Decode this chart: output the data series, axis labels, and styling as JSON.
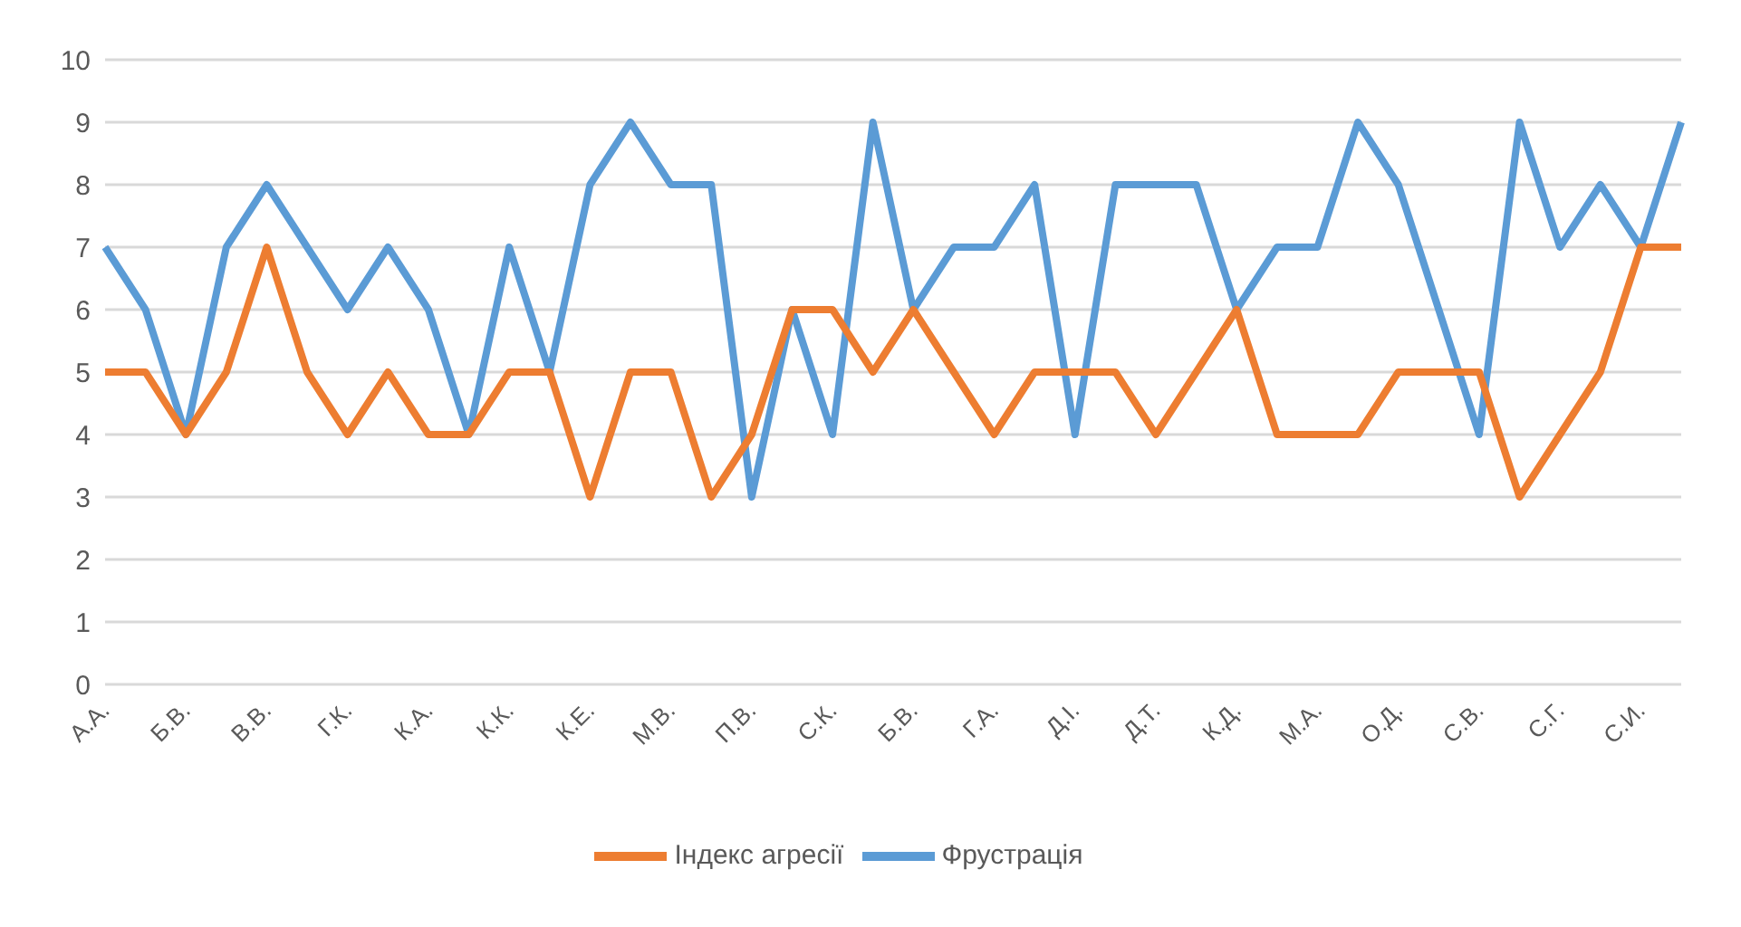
{
  "chart_data": {
    "type": "line",
    "categories": [
      "А.А.",
      null,
      "Б.В.",
      null,
      "В.В.",
      null,
      "Г.К.",
      null,
      "К.А.",
      null,
      "К.К.",
      null,
      "К.Е.",
      null,
      "М.В.",
      null,
      "П.В.",
      null,
      "С.К.",
      null,
      "Б.В.",
      null,
      "Г.А.",
      null,
      "Д.І.",
      null,
      "Д.Т.",
      null,
      "К.Д.",
      null,
      "М.А.",
      null,
      "О.Д.",
      null,
      "С.В.",
      null,
      "С.Г.",
      null,
      "С.И.",
      null
    ],
    "series": [
      {
        "name": "Фрустрація",
        "color": "#5b9bd5",
        "values": [
          7,
          6,
          4,
          7,
          8,
          7,
          6,
          7,
          6,
          4,
          7,
          5,
          8,
          9,
          8,
          8,
          3,
          6,
          4,
          9,
          6,
          7,
          7,
          8,
          4,
          8,
          8,
          8,
          6,
          7,
          7,
          9,
          8,
          6,
          4,
          9,
          7,
          8,
          7,
          9
        ]
      },
      {
        "name": "Індекс агресії",
        "color": "#ed7d31",
        "values": [
          5,
          5,
          4,
          5,
          7,
          5,
          4,
          5,
          4,
          4,
          5,
          5,
          3,
          5,
          5,
          3,
          4,
          6,
          6,
          5,
          6,
          5,
          4,
          5,
          5,
          5,
          4,
          5,
          6,
          4,
          4,
          4,
          5,
          5,
          5,
          3,
          4,
          5,
          7,
          7
        ]
      }
    ],
    "ylim": [
      0,
      10
    ],
    "yticks": [
      0,
      1,
      2,
      3,
      4,
      5,
      6,
      7,
      8,
      9,
      10
    ],
    "grid": "y",
    "legend": "bottom",
    "marker": "none",
    "line_style": "solid"
  }
}
